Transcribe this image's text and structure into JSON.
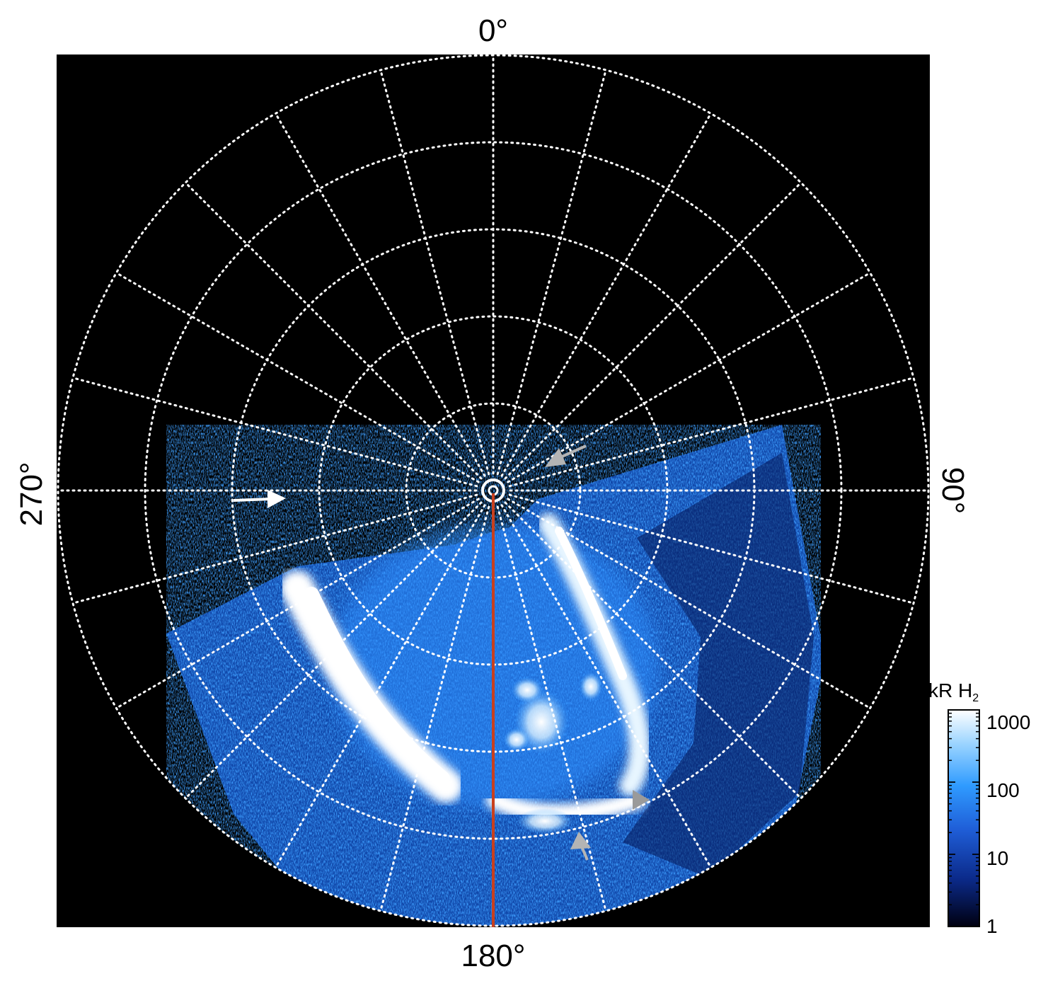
{
  "labels": {
    "top": "0°",
    "bottom": "180°",
    "left": "270°",
    "right": "90°"
  },
  "colorbar": {
    "title": "kR H",
    "title_subscript": "2",
    "ticks": [
      "1000",
      "100",
      "10",
      "1"
    ],
    "colors": [
      "#ffffff",
      "#9fd6ff",
      "#2f9bff",
      "#1f5ed8",
      "#0b2a8a",
      "#000010"
    ]
  },
  "colors": {
    "background": "#000000",
    "grid": "#ffffff",
    "meridian": "#c8401e",
    "arrow_white": "#ffffff",
    "arrow_gray": "#b4b4b4"
  }
}
